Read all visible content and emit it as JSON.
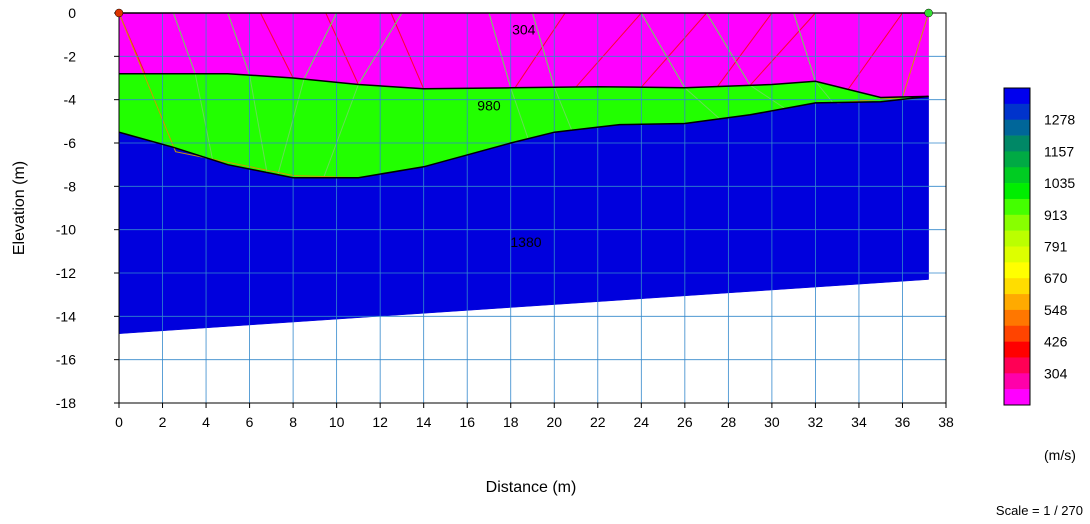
{
  "chart_data": {
    "type": "area",
    "title": "",
    "xlabel": "Distance (m)",
    "ylabel": "Elevation (m)",
    "xlim": [
      0,
      38
    ],
    "ylim": [
      -18,
      0
    ],
    "x_ticks": [
      0,
      2,
      4,
      6,
      8,
      10,
      12,
      14,
      16,
      18,
      20,
      22,
      24,
      26,
      28,
      30,
      32,
      34,
      36,
      38
    ],
    "y_ticks": [
      0,
      -2,
      -4,
      -6,
      -8,
      -10,
      -12,
      -14,
      -16,
      -18
    ],
    "grid": true,
    "layers": [
      {
        "velocity_label": "304",
        "color": "#ff00ff",
        "label_pos": {
          "x": 18.6,
          "y": -1.0
        },
        "top": [
          [
            0,
            0
          ],
          [
            37.2,
            0
          ]
        ],
        "bottom": [
          [
            0,
            -2.8
          ],
          [
            5,
            -2.8
          ],
          [
            8,
            -3.0
          ],
          [
            11,
            -3.3
          ],
          [
            14,
            -3.5
          ],
          [
            18,
            -3.45
          ],
          [
            22,
            -3.4
          ],
          [
            26,
            -3.45
          ],
          [
            30,
            -3.3
          ],
          [
            32,
            -3.15
          ],
          [
            35,
            -3.9
          ],
          [
            37.2,
            -3.85
          ]
        ]
      },
      {
        "velocity_label": "980",
        "color": "#22ff00",
        "label_pos": {
          "x": 17.0,
          "y": -4.5
        },
        "top": [
          [
            0,
            -2.8
          ],
          [
            5,
            -2.8
          ],
          [
            8,
            -3.0
          ],
          [
            11,
            -3.3
          ],
          [
            14,
            -3.5
          ],
          [
            18,
            -3.45
          ],
          [
            22,
            -3.4
          ],
          [
            26,
            -3.45
          ],
          [
            30,
            -3.3
          ],
          [
            32,
            -3.15
          ],
          [
            35,
            -3.9
          ],
          [
            37.2,
            -3.85
          ]
        ],
        "bottom": [
          [
            0,
            -5.5
          ],
          [
            2.5,
            -6.2
          ],
          [
            5,
            -7.0
          ],
          [
            8,
            -7.6
          ],
          [
            11,
            -7.6
          ],
          [
            14,
            -7.1
          ],
          [
            18,
            -6.0
          ],
          [
            20,
            -5.5
          ],
          [
            23,
            -5.15
          ],
          [
            26,
            -5.1
          ],
          [
            29,
            -4.7
          ],
          [
            32,
            -4.15
          ],
          [
            35,
            -4.1
          ],
          [
            37.2,
            -3.85
          ]
        ]
      },
      {
        "velocity_label": "1380",
        "color": "#0000dd",
        "label_pos": {
          "x": 18.7,
          "y": -10.8
        },
        "top": [
          [
            0,
            -5.5
          ],
          [
            2.5,
            -6.2
          ],
          [
            5,
            -7.0
          ],
          [
            8,
            -7.6
          ],
          [
            11,
            -7.6
          ],
          [
            14,
            -7.1
          ],
          [
            18,
            -6.0
          ],
          [
            20,
            -5.5
          ],
          [
            23,
            -5.15
          ],
          [
            26,
            -5.1
          ],
          [
            29,
            -4.7
          ],
          [
            32,
            -4.15
          ],
          [
            35,
            -4.1
          ],
          [
            37.2,
            -3.85
          ]
        ],
        "bottom": [
          [
            0,
            -14.8
          ],
          [
            37.2,
            -12.3
          ]
        ]
      }
    ],
    "sources": [
      {
        "x": 0,
        "y": 0,
        "color": "#dd3300"
      },
      {
        "x": 37.2,
        "y": 0,
        "color": "#33dd33"
      }
    ],
    "legend": {
      "unit": "(m/s)",
      "labels": [
        "1278",
        "1157",
        "1035",
        "913",
        "791",
        "670",
        "548",
        "426",
        "304"
      ],
      "colors": [
        "#0000ee",
        "#0033cc",
        "#006699",
        "#008866",
        "#00aa44",
        "#00cc22",
        "#00ee00",
        "#44ff00",
        "#88ff00",
        "#bbff00",
        "#ddff00",
        "#ffff00",
        "#ffdd00",
        "#ffaa00",
        "#ff7700",
        "#ff4400",
        "#ff0000",
        "#ff0055",
        "#ff00aa",
        "#ff00ff"
      ]
    },
    "scale_text": "Scale = 1 / 270"
  }
}
